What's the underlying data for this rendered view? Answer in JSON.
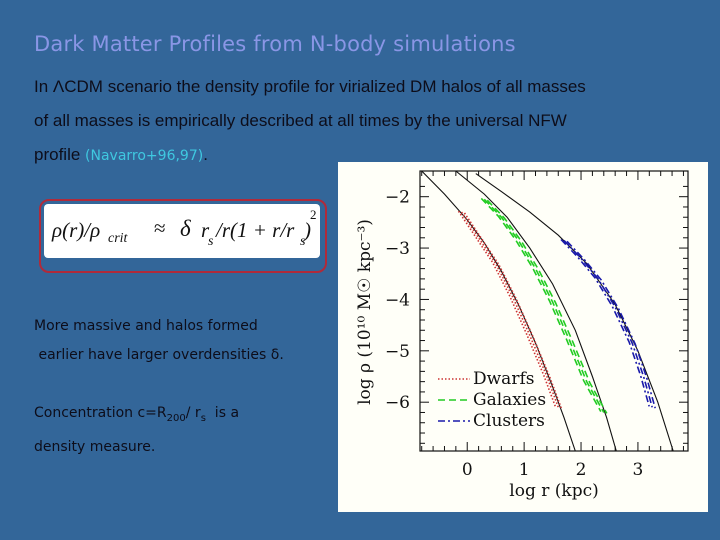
{
  "slide": {
    "title": "Dark Matter Profiles from N-body simulations",
    "intro_line1": "In ΛCDM scenario the density profile for virialized DM halos of all masses",
    "intro_line2": "of all masses is empirically described at all times by the universal  NFW",
    "intro_line3_text": "profile ",
    "citation": "(Navarro+96,97)",
    "intro_line3_end": ".",
    "formula": {
      "lhs": "ρ(r)/ρ",
      "lhs_sub": "crit",
      "approx": "≈",
      "delta": "δ",
      "r": "r",
      "r_sub": "s",
      "mid": "/r(1 + r/r",
      "mid_sub": "s",
      "close": ")",
      "power": "2"
    },
    "note1_line1": "More massive and halos formed",
    "note1_line2": " earlier have larger overdensities δ.",
    "note2_prefix": "Concentration c=R",
    "note2_sub": "200",
    "note2_mid": "/ r",
    "note2_sub2": "s",
    "note2_suffix": "  is a",
    "note2_line2": "density measure."
  },
  "chart_data": {
    "type": "line",
    "title": "",
    "xlabel": "log r (kpc)",
    "ylabel": "log ρ (10¹⁰ M☉ kpc⁻³)",
    "xlim": [
      -0.83,
      3.88
    ],
    "ylim": [
      -6.95,
      -1.5
    ],
    "xticks": [
      0,
      1,
      2,
      3
    ],
    "xtick_labels": [
      "0",
      "1",
      "2",
      "3"
    ],
    "yticks": [
      -2,
      -3,
      -4,
      -5,
      -6
    ],
    "ytick_labels": [
      "−2",
      "−3",
      "−4",
      "−5",
      "−6"
    ],
    "grid": false,
    "legend_position": "lower left",
    "legend": [
      {
        "name": "Dwarfs",
        "style": "dotted",
        "color": "#cc3333"
      },
      {
        "name": "Galaxies",
        "style": "dashed",
        "color": "#22cc22"
      },
      {
        "name": "Clusters",
        "style": "dash-dot",
        "color": "#1a1aaa"
      }
    ],
    "series": [
      {
        "name": "NFW fit (dwarfs)",
        "style": "solid",
        "color": "#111111",
        "x": [
          -0.8,
          -0.4,
          0.0,
          0.3,
          0.6,
          0.9,
          1.2,
          1.5,
          1.7,
          1.9
        ],
        "y": [
          -1.5,
          -1.95,
          -2.45,
          -2.9,
          -3.45,
          -4.1,
          -4.85,
          -5.7,
          -6.3,
          -6.95
        ]
      },
      {
        "name": "Dwarfs",
        "style": "dotted",
        "color": "#cc3333",
        "x": [
          -0.1,
          0.2,
          0.5,
          0.8,
          1.1,
          1.4,
          1.6
        ],
        "y": [
          -2.3,
          -2.8,
          -3.3,
          -3.95,
          -4.7,
          -5.5,
          -6.1
        ]
      },
      {
        "name": "NFW fit (galaxies)",
        "style": "solid",
        "color": "#111111",
        "x": [
          -0.2,
          0.3,
          0.7,
          1.1,
          1.5,
          1.9,
          2.2,
          2.45,
          2.62
        ],
        "y": [
          -1.5,
          -1.95,
          -2.4,
          -3.0,
          -3.7,
          -4.6,
          -5.5,
          -6.3,
          -6.95
        ]
      },
      {
        "name": "Galaxies",
        "style": "dashed",
        "color": "#22cc22",
        "x": [
          0.3,
          0.6,
          0.9,
          1.2,
          1.5,
          1.8,
          2.1,
          2.4
        ],
        "y": [
          -2.05,
          -2.4,
          -2.85,
          -3.4,
          -4.05,
          -4.8,
          -5.6,
          -6.2
        ]
      },
      {
        "name": "NFW fit (clusters)",
        "style": "solid",
        "color": "#111111",
        "x": [
          0.15,
          0.6,
          1.1,
          1.6,
          2.1,
          2.6,
          3.0,
          3.35,
          3.62
        ],
        "y": [
          -1.55,
          -1.9,
          -2.3,
          -2.75,
          -3.3,
          -4.1,
          -5.0,
          -6.0,
          -6.95
        ]
      },
      {
        "name": "Clusters",
        "style": "dash-dot",
        "color": "#1a1aaa",
        "x": [
          1.7,
          2.0,
          2.3,
          2.6,
          2.9,
          3.1,
          3.25
        ],
        "y": [
          -2.85,
          -3.2,
          -3.6,
          -4.15,
          -4.85,
          -5.5,
          -6.1
        ]
      }
    ]
  }
}
